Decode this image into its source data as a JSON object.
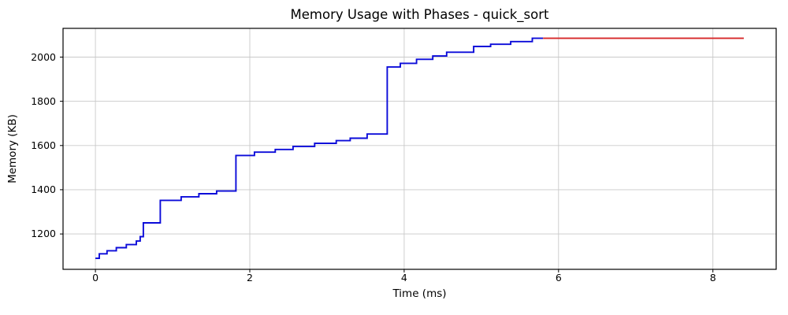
{
  "chart_data": {
    "type": "line",
    "title": "Memory Usage with Phases - quick_sort",
    "xlabel": "Time (ms)",
    "ylabel": "Memory (KB)",
    "xlim": [
      -0.42,
      8.82
    ],
    "ylim": [
      1040,
      2130
    ],
    "xticks": [
      0,
      2,
      4,
      6,
      8
    ],
    "yticks": [
      1200,
      1400,
      1600,
      1800,
      2000
    ],
    "grid": true,
    "legend_position": "none",
    "colors": {
      "grid": "#c9c9c9",
      "spine": "#000000",
      "text": "#000000",
      "allocation_phase": "#0b0bd9",
      "plateau_phase": "#d62728"
    },
    "series": [
      {
        "id": "allocation-phase",
        "style": "step-post",
        "color_key": "allocation_phase",
        "points": [
          [
            0.0,
            1090
          ],
          [
            0.05,
            1110
          ],
          [
            0.15,
            1124
          ],
          [
            0.27,
            1138
          ],
          [
            0.4,
            1152
          ],
          [
            0.53,
            1168
          ],
          [
            0.58,
            1188
          ],
          [
            0.62,
            1250
          ],
          [
            0.84,
            1352
          ],
          [
            1.11,
            1368
          ],
          [
            1.34,
            1382
          ],
          [
            1.57,
            1394
          ],
          [
            1.82,
            1555
          ],
          [
            2.06,
            1570
          ],
          [
            2.33,
            1582
          ],
          [
            2.56,
            1596
          ],
          [
            2.84,
            1610
          ],
          [
            3.12,
            1622
          ],
          [
            3.3,
            1633
          ],
          [
            3.52,
            1652
          ],
          [
            3.78,
            1955
          ],
          [
            3.95,
            1972
          ],
          [
            4.16,
            1990
          ],
          [
            4.37,
            2005
          ],
          [
            4.55,
            2022
          ],
          [
            4.9,
            2048
          ],
          [
            5.12,
            2058
          ],
          [
            5.38,
            2070
          ],
          [
            5.66,
            2085
          ],
          [
            5.8,
            2085
          ]
        ]
      },
      {
        "id": "plateau-phase",
        "style": "line",
        "color_key": "plateau_phase",
        "points": [
          [
            5.8,
            2085
          ],
          [
            8.4,
            2085
          ]
        ]
      }
    ]
  }
}
